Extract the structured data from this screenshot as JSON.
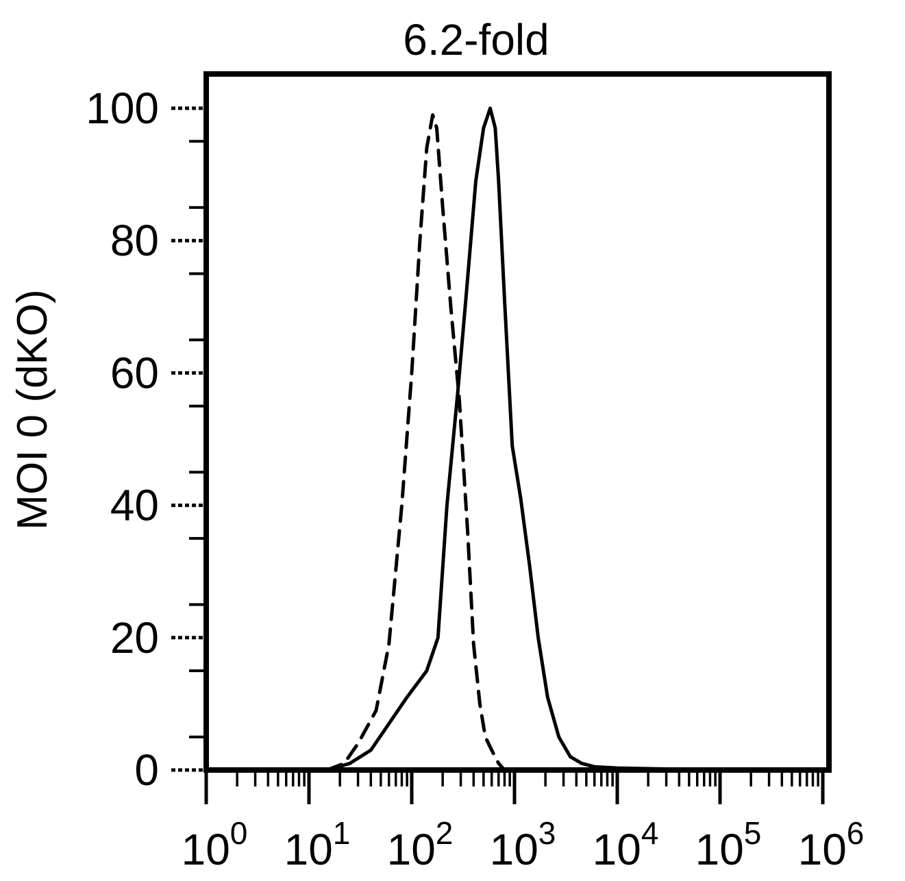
{
  "chart_data": {
    "type": "line",
    "title": "6.2-fold",
    "xlabel": "",
    "ylabel": "MOI 0 (dKO)",
    "x_scale": "log10",
    "xlim": [
      1,
      1000000
    ],
    "ylim": [
      0,
      100
    ],
    "x_tick_labels": [
      {
        "base": "10",
        "exp": "0"
      },
      {
        "base": "10",
        "exp": "1"
      },
      {
        "base": "10",
        "exp": "2"
      },
      {
        "base": "10",
        "exp": "3"
      },
      {
        "base": "10",
        "exp": "4"
      },
      {
        "base": "10",
        "exp": "5"
      },
      {
        "base": "10",
        "exp": "6"
      }
    ],
    "y_ticks": [
      0,
      20,
      40,
      60,
      80,
      100
    ],
    "y_tick_labels": [
      "0",
      "20",
      "40",
      "60",
      "80",
      "100"
    ],
    "grid": false,
    "legend": "none",
    "series": [
      {
        "style": "dashed",
        "x": [
          15,
          22,
          30,
          45,
          60,
          80,
          100,
          120,
          140,
          160,
          175,
          200,
          240,
          290,
          350,
          400,
          460,
          520,
          600,
          700,
          800
        ],
        "y": [
          0,
          1,
          4,
          9,
          19,
          40,
          60,
          80,
          94,
          99,
          97,
          85,
          70,
          56,
          36,
          19,
          10,
          5,
          3,
          1,
          0
        ]
      },
      {
        "style": "solid",
        "x": [
          15,
          25,
          40,
          60,
          90,
          140,
          180,
          220,
          280,
          340,
          420,
          500,
          580,
          650,
          700,
          800,
          950,
          1150,
          1400,
          1700,
          2100,
          2700,
          3500,
          4500,
          6000,
          10000,
          100000,
          1000000
        ],
        "y": [
          0,
          1,
          3,
          7,
          11,
          15,
          20,
          40,
          57,
          72,
          89,
          97,
          100,
          97,
          89,
          71,
          49,
          41,
          31,
          20,
          11,
          5,
          2,
          1,
          0.5,
          0.3,
          0,
          0
        ]
      }
    ]
  }
}
